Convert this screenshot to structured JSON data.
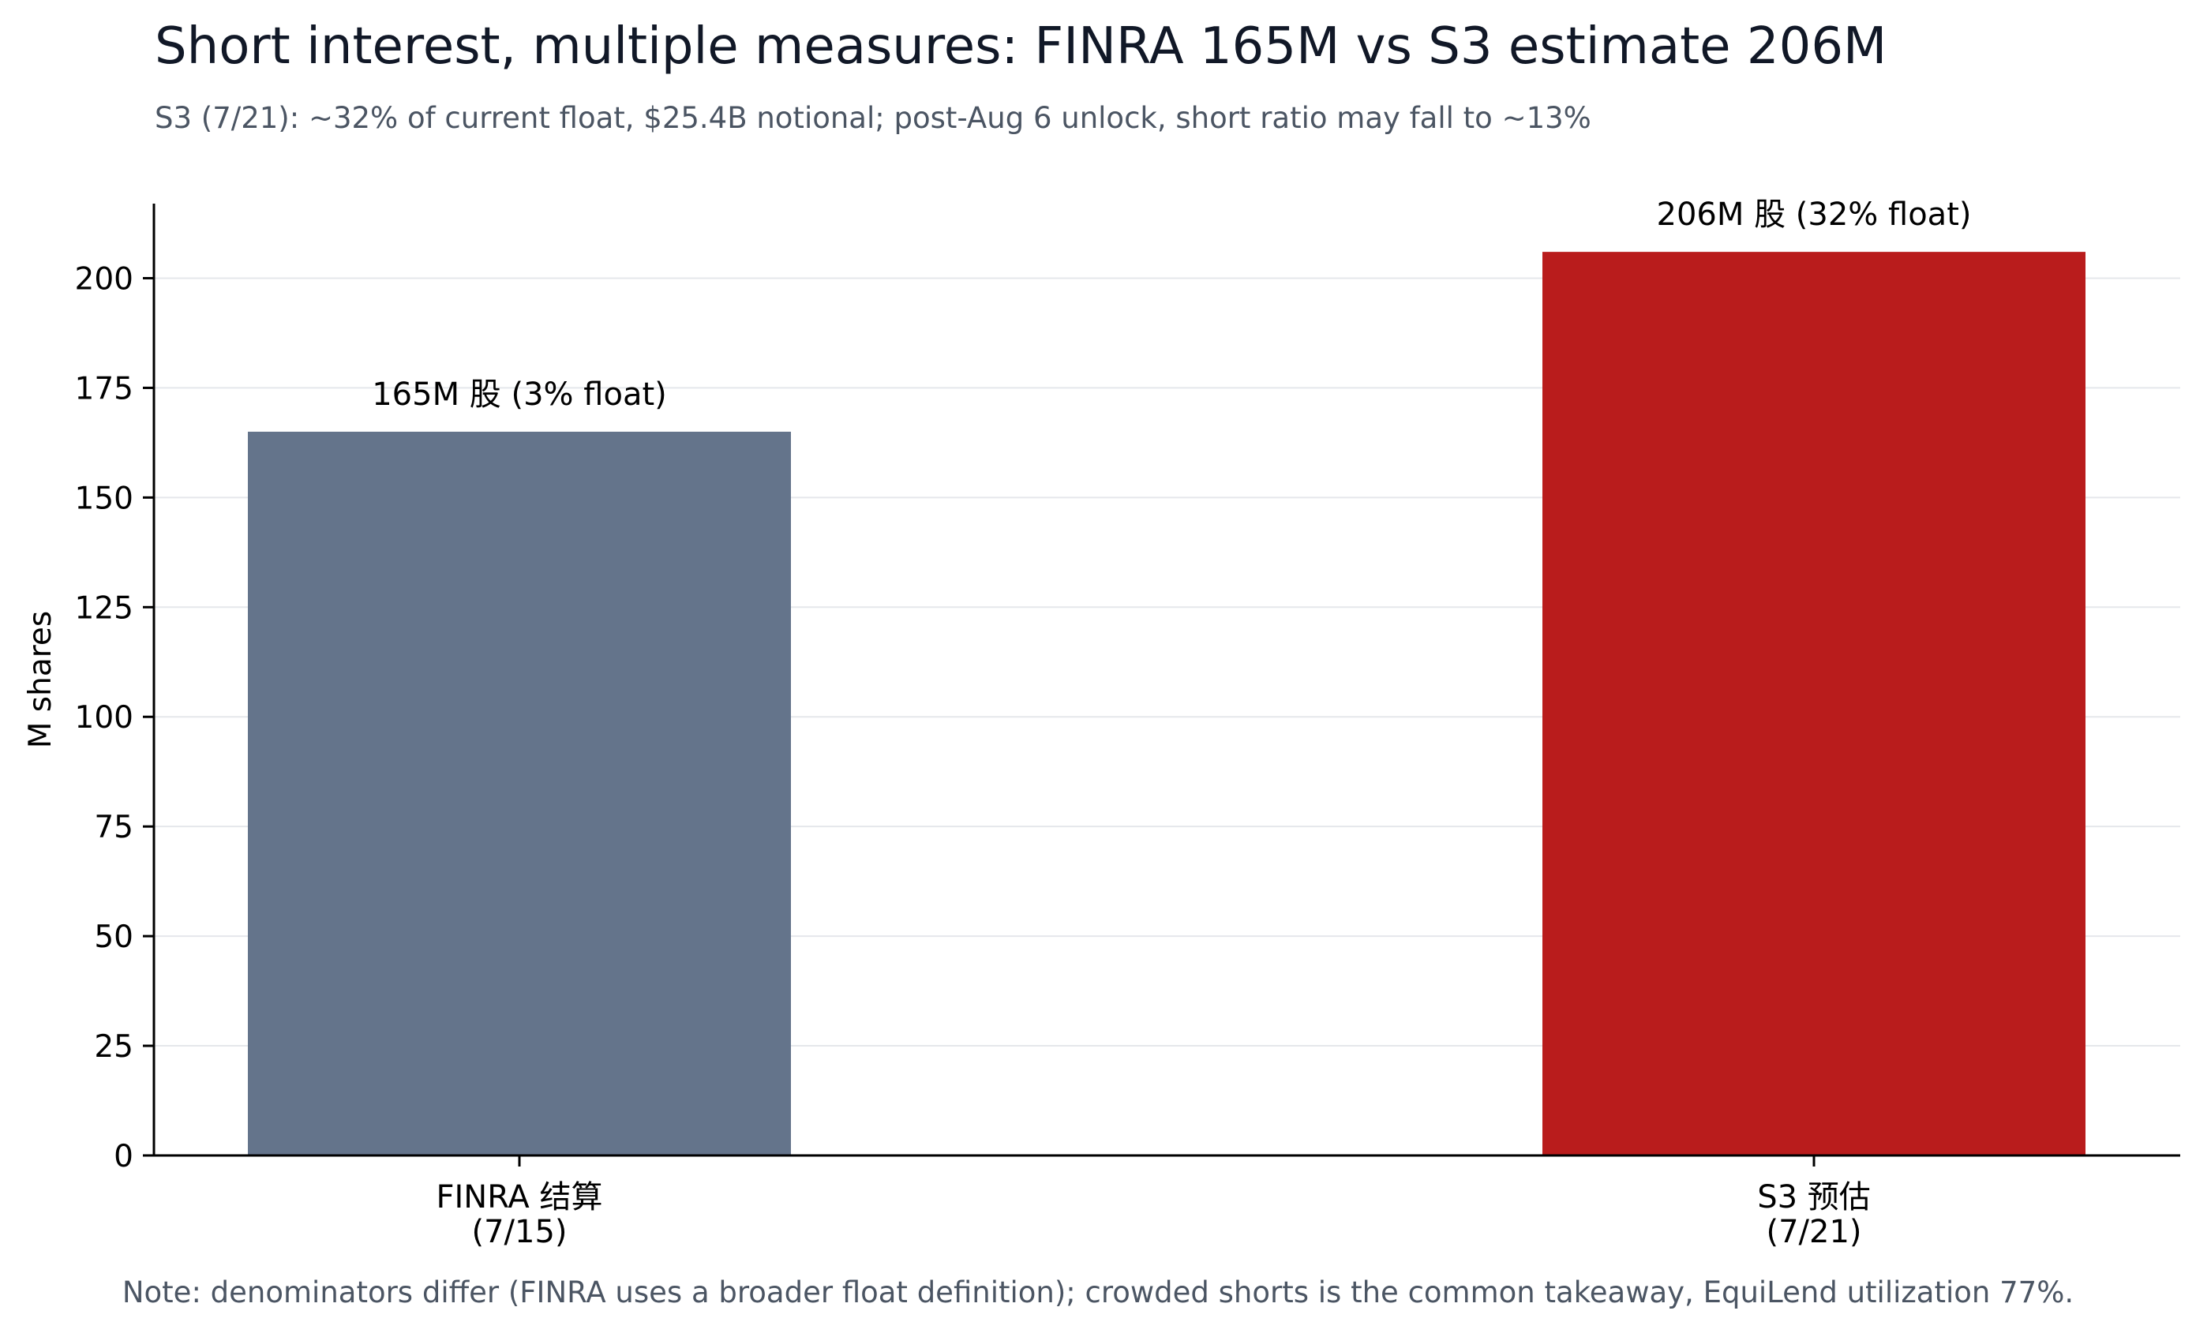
{
  "chart_data": {
    "type": "bar",
    "title": "Short interest, multiple measures: FINRA 165M vs S3 estimate 206M",
    "subtitle": "S3 (7/21): ~32% of current float, $25.4B notional; post-Aug 6 unlock, short ratio may fall to ~13%",
    "note": "Note: denominators differ (FINRA uses a broader float definition); crowded shorts is the common takeaway, EquiLend utilization 77%.",
    "xlabel": "",
    "ylabel": "M shares",
    "ylim": [
      0,
      217
    ],
    "yticks": [
      0,
      25,
      50,
      75,
      100,
      125,
      150,
      175,
      200
    ],
    "grid": "y",
    "bars": [
      {
        "category_line1": "FINRA 结算",
        "category_line2": "(7/15)",
        "value": 165,
        "label": "165M 股 (3% float)",
        "color": "#64748b"
      },
      {
        "category_line1": "S3 预估",
        "category_line2": "(7/21)",
        "value": 206,
        "label": "206M 股 (32% float)",
        "color": "#b91c1c"
      }
    ]
  }
}
